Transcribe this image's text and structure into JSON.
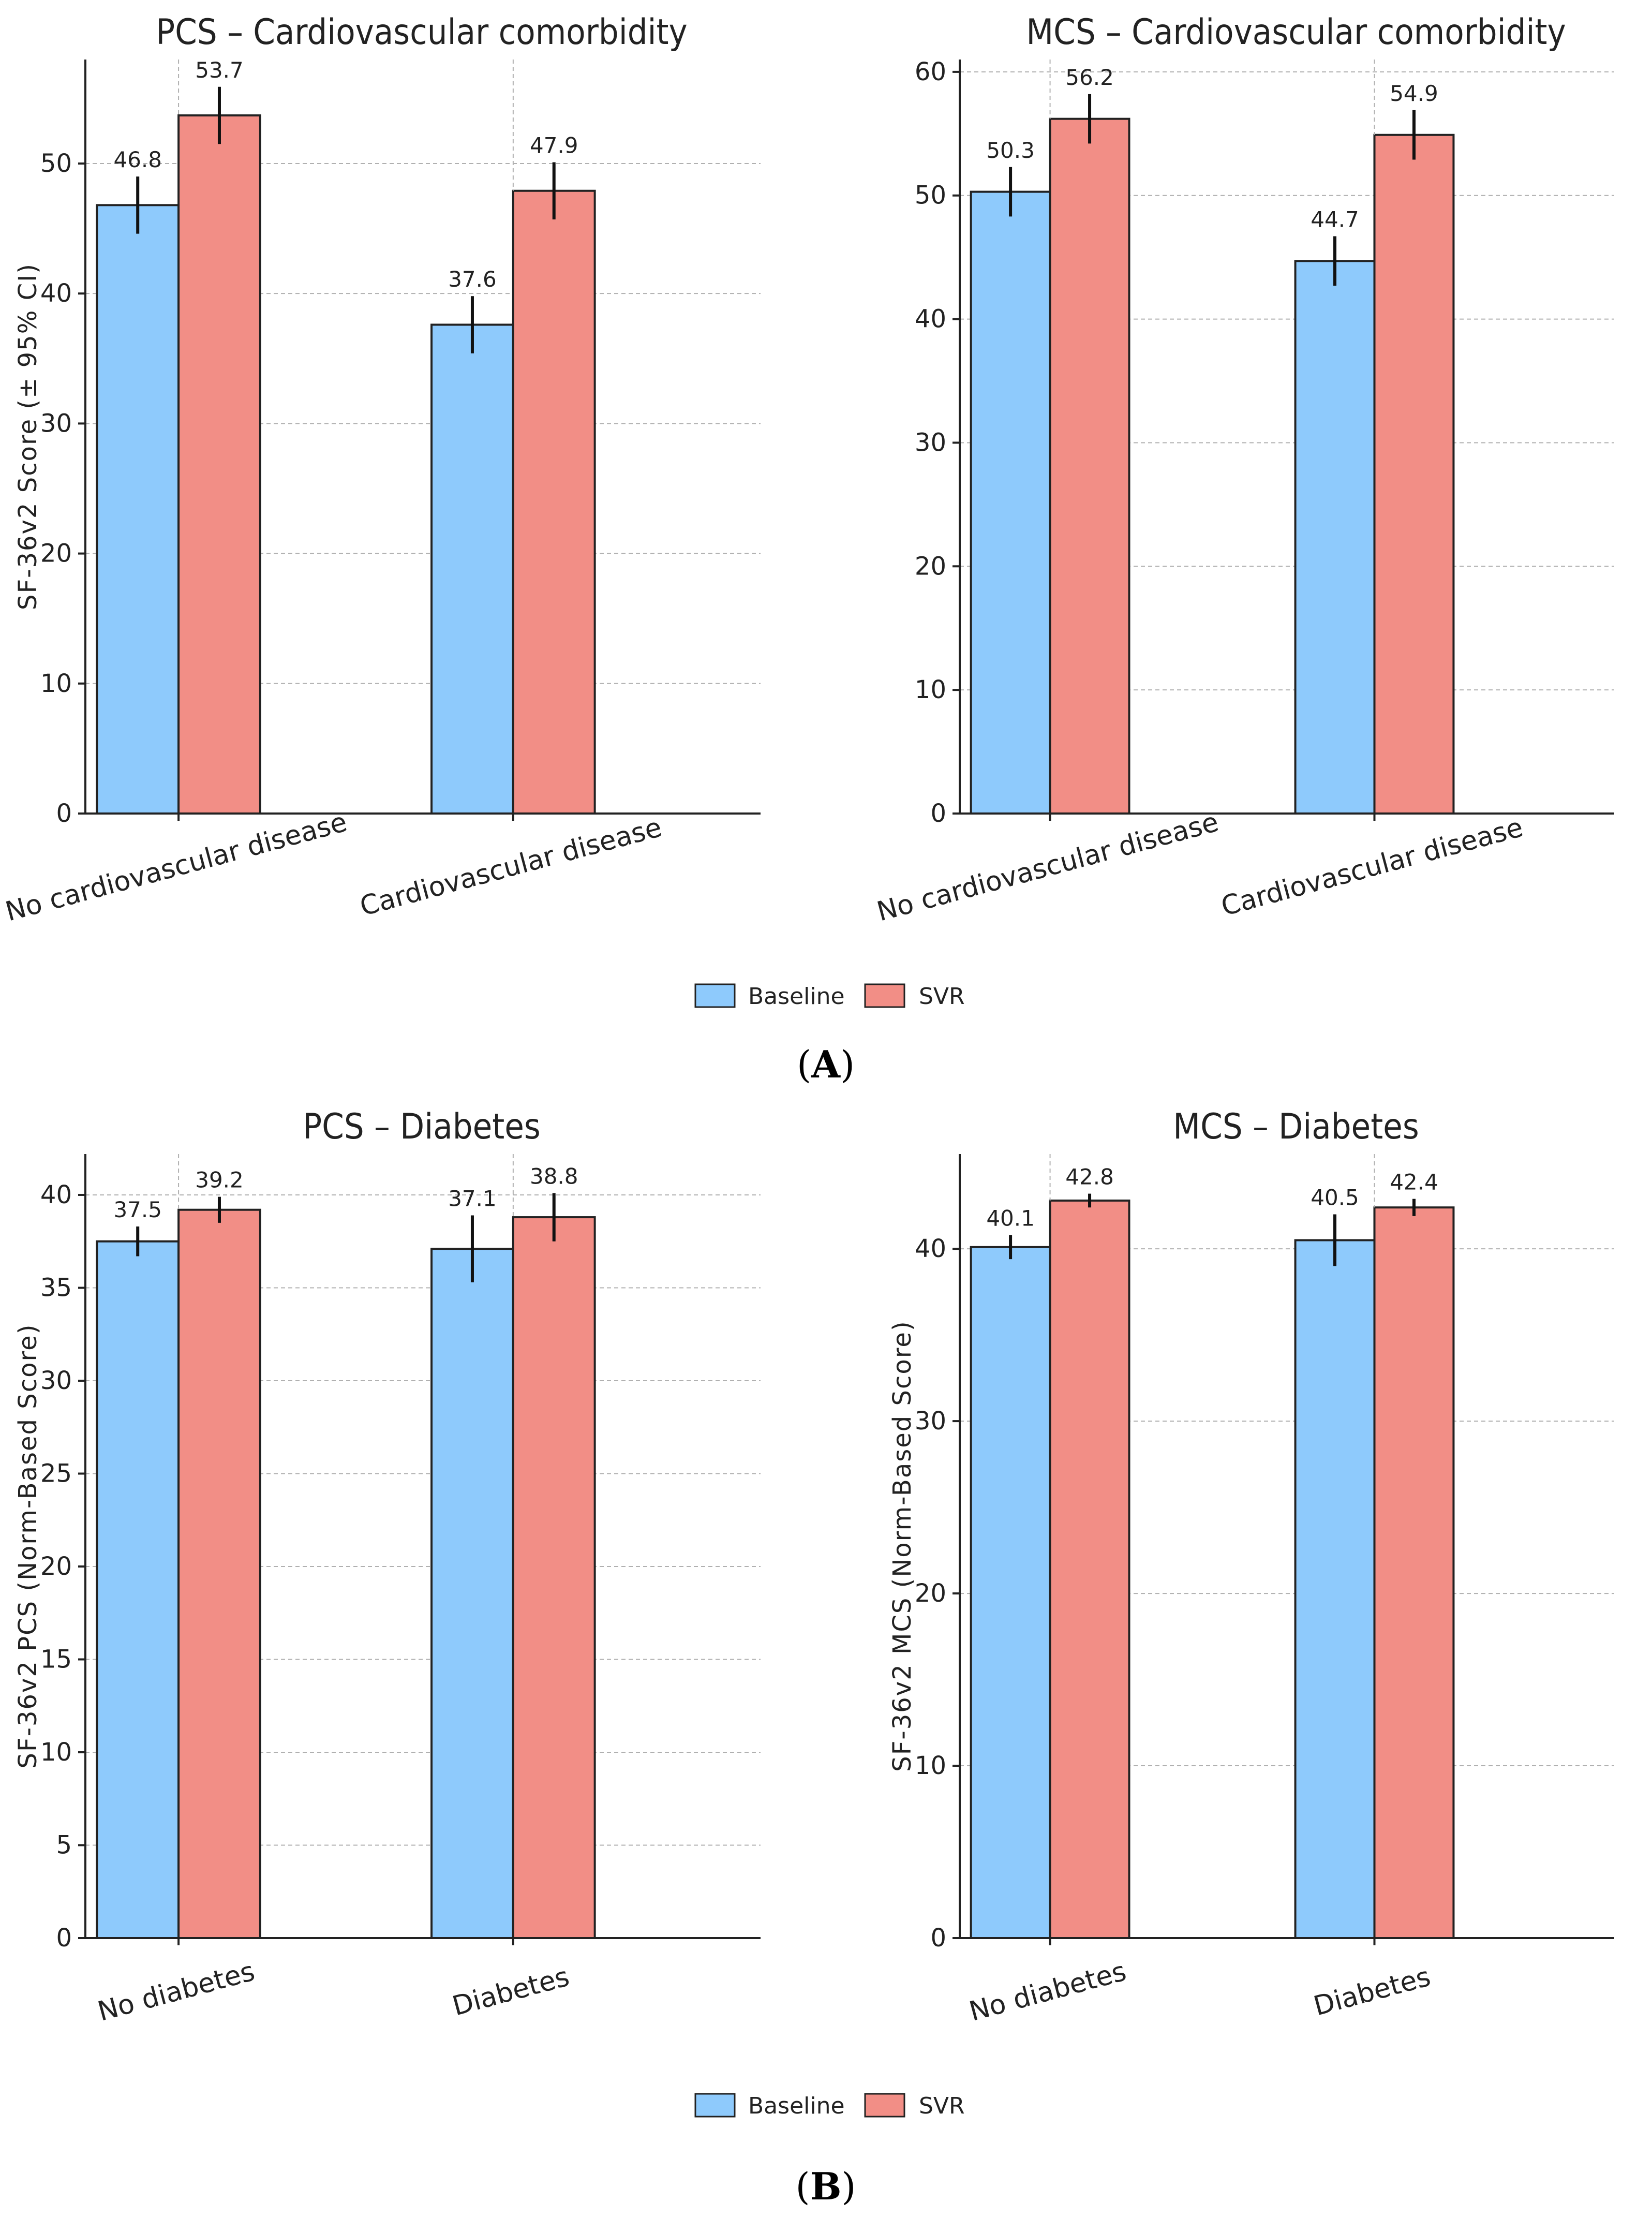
{
  "colors": {
    "baseline": "#8ecafc",
    "svr": "#f28e86",
    "axis": "#222222",
    "grid": "#b0b0b0"
  },
  "sections": [
    {
      "label_open": "(",
      "label_letter": "A",
      "label_close": ")",
      "legend": {
        "items": [
          {
            "name": "Baseline",
            "color": "#8ecafc"
          },
          {
            "name": "SVR",
            "color": "#f28e86"
          }
        ]
      }
    },
    {
      "label_open": "(",
      "label_letter": "B",
      "label_close": ")",
      "legend": {
        "items": [
          {
            "name": "Baseline",
            "color": "#8ecafc"
          },
          {
            "name": "SVR",
            "color": "#f28e86"
          }
        ]
      }
    }
  ],
  "chart_data": [
    {
      "type": "bar",
      "title": "PCS – Cardiovascular comorbidity",
      "ylabel": "SF-36v2 Score (± 95% CI)",
      "xlabel": "",
      "categories": [
        "No cardiovascular disease",
        "Cardiovascular disease"
      ],
      "ylim": [
        0,
        58
      ],
      "yticks": [
        0,
        10,
        20,
        30,
        40,
        50
      ],
      "rotate_categories": true,
      "series": [
        {
          "name": "Baseline",
          "values": [
            46.8,
            37.6
          ],
          "ci": [
            2.2,
            2.2
          ],
          "labels": [
            "46.8",
            "37.6"
          ]
        },
        {
          "name": "SVR",
          "values": [
            53.7,
            47.9
          ],
          "ci": [
            2.2,
            2.2
          ],
          "labels": [
            "53.7",
            "47.9"
          ]
        }
      ],
      "grid": true
    },
    {
      "type": "bar",
      "title": "MCS – Cardiovascular comorbidity",
      "ylabel": "",
      "xlabel": "",
      "categories": [
        "No cardiovascular disease",
        "Cardiovascular disease"
      ],
      "ylim": [
        0,
        61
      ],
      "yticks": [
        0,
        10,
        20,
        30,
        40,
        50,
        60
      ],
      "rotate_categories": true,
      "series": [
        {
          "name": "Baseline",
          "values": [
            50.3,
            44.7
          ],
          "ci": [
            2.0,
            2.0
          ],
          "labels": [
            "50.3",
            "44.7"
          ]
        },
        {
          "name": "SVR",
          "values": [
            56.2,
            54.9
          ],
          "ci": [
            2.0,
            2.0
          ],
          "labels": [
            "56.2",
            "54.9"
          ]
        }
      ],
      "grid": true
    },
    {
      "type": "bar",
      "title": "PCS – Diabetes",
      "ylabel": "SF-36v2 PCS (Norm-Based Score)",
      "xlabel": "",
      "categories": [
        "No diabetes",
        "Diabetes"
      ],
      "ylim": [
        0,
        42.2
      ],
      "yticks": [
        0,
        5,
        10,
        15,
        20,
        25,
        30,
        35,
        40
      ],
      "rotate_categories": true,
      "series": [
        {
          "name": "Baseline",
          "values": [
            37.5,
            37.1
          ],
          "ci": [
            0.8,
            1.8
          ],
          "labels": [
            "37.5",
            "37.1"
          ]
        },
        {
          "name": "SVR",
          "values": [
            39.2,
            38.8
          ],
          "ci": [
            0.7,
            1.3
          ],
          "labels": [
            "39.2",
            "38.8"
          ]
        }
      ],
      "grid": true
    },
    {
      "type": "bar",
      "title": "MCS – Diabetes",
      "ylabel": "SF-36v2 MCS (Norm-Based Score)",
      "xlabel": "",
      "categories": [
        "No diabetes",
        "Diabetes"
      ],
      "ylim": [
        0,
        45.5
      ],
      "yticks": [
        0,
        10,
        20,
        30,
        40
      ],
      "rotate_categories": true,
      "series": [
        {
          "name": "Baseline",
          "values": [
            40.1,
            40.5
          ],
          "ci": [
            0.7,
            1.5
          ],
          "labels": [
            "40.1",
            "40.5"
          ]
        },
        {
          "name": "SVR",
          "values": [
            42.8,
            42.4
          ],
          "ci": [
            0.4,
            0.5
          ],
          "labels": [
            "42.8",
            "42.4"
          ]
        }
      ],
      "grid": true
    }
  ]
}
